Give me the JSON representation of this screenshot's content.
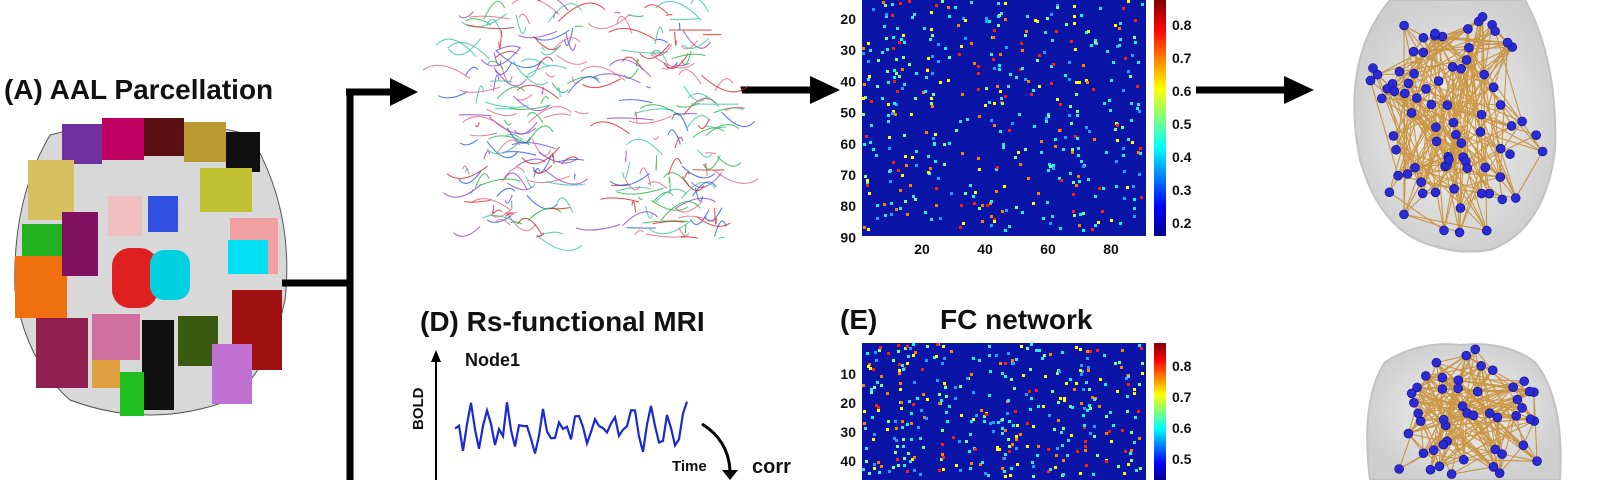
{
  "panel_a": {
    "title": "(A) AAL Parcellation"
  },
  "panel_d": {
    "title": "(D) Rs-functional MRI",
    "node_label": "Node1",
    "y_axis": "BOLD",
    "x_axis": "Time",
    "corr_label": "corr"
  },
  "panel_e": {
    "label": "(E)",
    "title": "FC network"
  },
  "matrix_c": {
    "y_ticks": [
      "20",
      "30",
      "40",
      "50",
      "60",
      "70",
      "80",
      "90"
    ],
    "x_ticks": [
      "20",
      "40",
      "60",
      "80"
    ],
    "colorbar_ticks": [
      "0.8",
      "0.7",
      "0.6",
      "0.5",
      "0.4",
      "0.3",
      "0.2"
    ]
  },
  "matrix_e": {
    "y_ticks": [
      "10",
      "20",
      "30",
      "40"
    ],
    "colorbar_ticks": [
      "0.8",
      "0.7",
      "0.6",
      "0.5"
    ]
  },
  "colors": {
    "arrow": "#000000",
    "matrix_bg": "#0a14a6",
    "node": "#2a2ad6",
    "edge": "#c78a2a",
    "signal": "#1a2ad0"
  }
}
